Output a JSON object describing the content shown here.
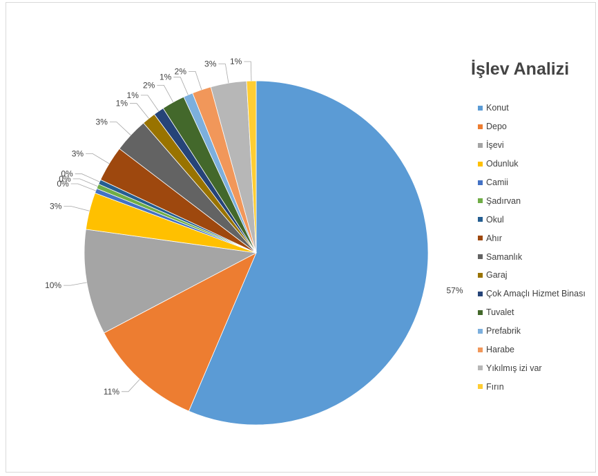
{
  "chart_data": {
    "type": "pie",
    "title": "İşlev Analizi",
    "legend_position": "right",
    "slices": [
      {
        "label": "Konut",
        "value": 57,
        "data_label": "57%",
        "color": "#5b9bd5"
      },
      {
        "label": "Depo",
        "value": 11,
        "data_label": "11%",
        "color": "#ed7d31"
      },
      {
        "label": "İşevi",
        "value": 10,
        "data_label": "10%",
        "color": "#a5a5a5"
      },
      {
        "label": "Odunluk",
        "value": 3.5,
        "data_label": "3%",
        "color": "#ffc000"
      },
      {
        "label": "Camii",
        "value": 0.45,
        "data_label": "0%",
        "color": "#4472c4"
      },
      {
        "label": "Şadırvan",
        "value": 0.45,
        "data_label": "0%",
        "color": "#70ad47"
      },
      {
        "label": "Okul",
        "value": 0.45,
        "data_label": "0%",
        "color": "#255e91"
      },
      {
        "label": "Ahır",
        "value": 3.4,
        "data_label": "3%",
        "color": "#9e480e"
      },
      {
        "label": "Samanlık",
        "value": 3.3,
        "data_label": "3%",
        "color": "#636363"
      },
      {
        "label": "Garaj",
        "value": 1.3,
        "data_label": "1%",
        "color": "#997300"
      },
      {
        "label": "Çok Amaçlı Hizmet Binası",
        "value": 1.0,
        "data_label": "1%",
        "color": "#264478"
      },
      {
        "label": "Tuvalet",
        "value": 2.2,
        "data_label": "2%",
        "color": "#43682b"
      },
      {
        "label": "Prefabrik",
        "value": 0.9,
        "data_label": "1%",
        "color": "#7cafdd"
      },
      {
        "label": "Harabe",
        "value": 1.8,
        "data_label": "2%",
        "color": "#f1975a"
      },
      {
        "label": "Yıkılmış izi var",
        "value": 3.4,
        "data_label": "3%",
        "color": "#b7b7b7"
      },
      {
        "label": "Fırın",
        "value": 0.9,
        "data_label": "1%",
        "color": "#ffcd33"
      }
    ]
  }
}
